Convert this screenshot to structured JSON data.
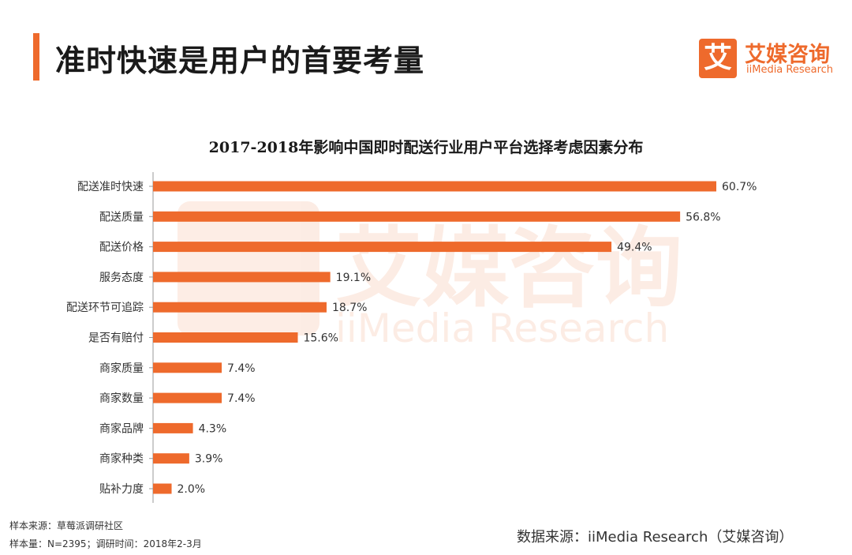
{
  "header": {
    "title": "准时快速是用户的首要考量",
    "accent_color": "#ee6a2c"
  },
  "logo": {
    "mark_char": "艾",
    "name_cn": "艾媒咨询",
    "name_en": "iiMedia Research",
    "color": "#ee6a2c"
  },
  "footer": {
    "sample_source": "样本来源：草莓派调研社区",
    "sample_info": "样本量：N=2395；调研时间：2018年2-3月",
    "data_source": "数据来源：iiMedia Research（艾媒咨询）"
  },
  "chart_data": {
    "type": "bar",
    "orientation": "horizontal",
    "title": "2017-2018年影响中国即时配送行业用户平台选择考虑因素分布",
    "xlabel": "",
    "ylabel": "",
    "xlim": [
      0,
      60.7
    ],
    "grid": false,
    "bar_color": "#ee6a2c",
    "categories": [
      "配送准时快速",
      "配送质量",
      "配送价格",
      "服务态度",
      "配送环节可追踪",
      "是否有赔付",
      "商家质量",
      "商家数量",
      "商家品牌",
      "商家种类",
      "贴补力度"
    ],
    "values": [
      60.7,
      56.8,
      49.4,
      19.1,
      18.7,
      15.6,
      7.4,
      7.4,
      4.3,
      3.9,
      2.0
    ],
    "value_labels": [
      "60.7%",
      "56.8%",
      "49.4%",
      "19.1%",
      "18.7%",
      "15.6%",
      "7.4%",
      "7.4%",
      "4.3%",
      "3.9%",
      "2.0%"
    ]
  }
}
